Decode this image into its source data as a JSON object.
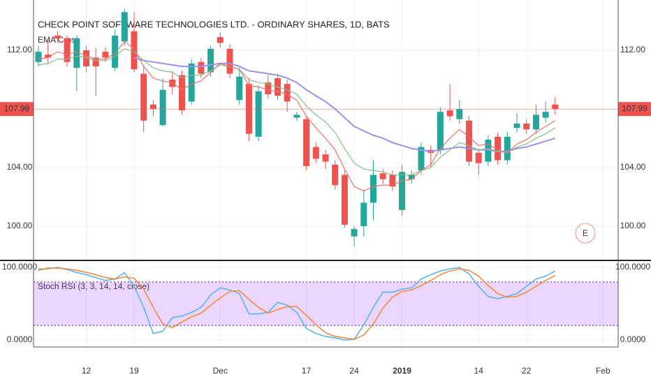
{
  "chart_data": [
    {
      "type": "candlestick",
      "title": "CHECK POINT SOFTWARE TECHNOLOGIES LTD. - ORDINARY SHARES, 1D, BATS",
      "subtitle": "EMA Cross",
      "categories": [
        null,
        null,
        null,
        null,
        null,
        "12",
        null,
        null,
        null,
        null,
        "19",
        null,
        null,
        null,
        null,
        null,
        null,
        null,
        null,
        "Dec",
        null,
        null,
        null,
        null,
        null,
        null,
        null,
        null,
        "17",
        null,
        null,
        null,
        null,
        "24",
        null,
        null,
        null,
        null,
        "2019",
        null,
        null,
        null,
        null,
        null,
        null,
        null,
        "14",
        null,
        null,
        null,
        null,
        "22",
        null,
        null,
        null,
        null,
        null,
        null,
        null,
        "Feb"
      ],
      "open": [
        111.2,
        111.7,
        113.0,
        112.8,
        110.8,
        112.0,
        111.5,
        111.9,
        110.8,
        112.6,
        113.3,
        110.4,
        108.3,
        106.9,
        110.0,
        110.3,
        108.5,
        111.2,
        110.5,
        112.9,
        112.1,
        108.6,
        109.7,
        106.1,
        109.8,
        110.1,
        109.7,
        107.4,
        107.3,
        105.4,
        104.9,
        104.2,
        103.5,
        99.3,
        100.0,
        101.6,
        103.6,
        103.5,
        101.1,
        103.2,
        103.8,
        105.2,
        105.2,
        107.9,
        107.3,
        107.2,
        105.0,
        104.4,
        106.1,
        104.5,
        106.7,
        107.0,
        106.6,
        107.4,
        108.3,
        null,
        null,
        null,
        null,
        null
      ],
      "high": [
        112.3,
        112.8,
        113.3,
        113.0,
        113.0,
        112.3,
        112.2,
        112.2,
        113.4,
        114.8,
        114.6,
        111.0,
        108.6,
        110.1,
        110.6,
        110.6,
        111.4,
        111.5,
        112.3,
        113.2,
        112.4,
        110.8,
        110.1,
        109.6,
        110.3,
        110.4,
        110.0,
        107.8,
        107.5,
        105.7,
        105.2,
        104.5,
        103.8,
        100.0,
        102.5,
        104.5,
        103.9,
        103.8,
        104.2,
        103.8,
        105.7,
        105.5,
        108.1,
        109.7,
        108.6,
        107.5,
        105.3,
        106.2,
        106.4,
        106.4,
        107.7,
        107.3,
        108.3,
        108.5,
        108.8,
        null,
        null,
        null,
        null,
        null
      ],
      "low": [
        110.9,
        111.0,
        112.5,
        110.9,
        109.2,
        110.5,
        108.9,
        111.2,
        110.6,
        112.3,
        110.5,
        106.4,
        107.5,
        106.8,
        109.0,
        107.6,
        108.3,
        110.1,
        110.2,
        112.2,
        110.1,
        108.3,
        105.8,
        105.8,
        108.7,
        108.6,
        107.8,
        107.2,
        103.8,
        104.3,
        103.9,
        102.5,
        99.9,
        98.6,
        99.3,
        100.4,
        102.9,
        102.4,
        100.7,
        102.9,
        103.5,
        104.0,
        104.9,
        107.2,
        107.0,
        104.1,
        103.5,
        104.1,
        104.2,
        104.2,
        106.4,
        106.3,
        106.3,
        107.1,
        107.6,
        null,
        null,
        null,
        null,
        null
      ],
      "close": [
        111.9,
        111.5,
        112.8,
        111.2,
        112.8,
        110.9,
        110.9,
        111.5,
        113.0,
        114.6,
        110.7,
        107.2,
        108.0,
        109.3,
        109.5,
        107.9,
        111.1,
        110.4,
        112.1,
        112.5,
        110.4,
        110.2,
        106.3,
        109.2,
        109.0,
        108.9,
        108.5,
        107.6,
        104.1,
        104.6,
        104.4,
        102.8,
        100.1,
        99.8,
        101.6,
        103.5,
        103.2,
        102.7,
        103.7,
        103.5,
        105.4,
        105.0,
        107.8,
        107.5,
        108.0,
        104.4,
        104.3,
        105.9,
        104.5,
        106.1,
        107.0,
        106.6,
        107.6,
        107.8,
        107.99,
        null,
        null,
        null,
        null,
        null
      ],
      "up_color": "#26a69a",
      "down_color": "#ef5350",
      "ema_lines": [
        {
          "color": "#9a93ee",
          "values": [
            null,
            null,
            null,
            null,
            null,
            null,
            null,
            null,
            null,
            null,
            111.5,
            111.3,
            111.2,
            111.1,
            111.0,
            110.9,
            110.9,
            110.9,
            111.0,
            111.1,
            111.1,
            110.9,
            110.6,
            110.5,
            110.4,
            110.3,
            110.1,
            109.8,
            109.3,
            108.9,
            108.5,
            108.0,
            107.4,
            106.8,
            106.5,
            106.2,
            106.0,
            105.7,
            105.5,
            105.3,
            105.2,
            105.1,
            105.2,
            105.3,
            105.4,
            105.3,
            105.2,
            105.2,
            105.1,
            105.1,
            105.3,
            105.4,
            105.6,
            105.8,
            106.0,
            null,
            null,
            null,
            null,
            null
          ]
        },
        {
          "color": "#86c08a",
          "values": [
            111.0,
            111.1,
            111.4,
            111.4,
            111.6,
            111.5,
            111.3,
            111.3,
            111.6,
            112.1,
            111.9,
            111.3,
            110.8,
            110.6,
            110.5,
            110.1,
            110.3,
            110.3,
            110.6,
            111.0,
            110.9,
            110.7,
            110.0,
            109.8,
            109.7,
            109.5,
            109.3,
            109.0,
            108.2,
            107.6,
            107.1,
            106.4,
            105.3,
            104.3,
            103.9,
            103.8,
            103.7,
            103.5,
            103.5,
            103.5,
            103.8,
            104.0,
            104.7,
            105.2,
            105.7,
            105.5,
            105.2,
            105.3,
            105.1,
            105.0,
            105.4,
            105.6,
            106.0,
            106.3,
            106.7,
            null,
            null,
            null,
            null,
            null
          ]
        },
        {
          "color": "#f0706a",
          "values": [
            111.4,
            111.5,
            111.9,
            111.7,
            111.9,
            111.6,
            111.4,
            111.4,
            111.8,
            112.6,
            112.1,
            110.9,
            110.1,
            109.9,
            109.8,
            109.3,
            109.7,
            109.9,
            110.5,
            111.1,
            110.9,
            110.7,
            109.6,
            109.5,
            109.3,
            109.2,
            109.0,
            108.6,
            107.5,
            106.7,
            106.0,
            105.2,
            103.9,
            102.7,
            102.4,
            102.7,
            102.8,
            102.8,
            103.1,
            103.2,
            103.8,
            104.2,
            105.3,
            106.0,
            106.6,
            106.1,
            105.5,
            105.6,
            105.2,
            105.0,
            105.6,
            105.9,
            106.4,
            106.8,
            107.2,
            null,
            null,
            null,
            null,
            null
          ]
        }
      ],
      "last_price": 107.99,
      "last_price_color": "#ef5350",
      "earnings_marker": "E",
      "ylim": [
        97.71,
        115.43
      ],
      "yticks": [
        {
          "value": 100,
          "label": "100.00"
        },
        {
          "value": 104,
          "label": "104.00"
        },
        {
          "value": 112,
          "label": "112.00"
        }
      ],
      "grid": true
    },
    {
      "type": "line",
      "title": "Stoch RSI (3, 3, 14, 14, close)",
      "series": [
        {
          "color": "#5ab4f0",
          "values": [
            98,
            98,
            100,
            97,
            93,
            90,
            86,
            82,
            84,
            93,
            74,
            45,
            9,
            12,
            31,
            33,
            38,
            45,
            62,
            72,
            69,
            64,
            36,
            36,
            38,
            52,
            48,
            38,
            16,
            9,
            5,
            3,
            0,
            1,
            21,
            45,
            66,
            66,
            70,
            72,
            84,
            90,
            95,
            98,
            100,
            91,
            74,
            60,
            57,
            60,
            64,
            74,
            84,
            88,
            95,
            null,
            null,
            null,
            null,
            null
          ]
        },
        {
          "color": "#f08c3c",
          "values": [
            96,
            99,
            99,
            98,
            96,
            93,
            90,
            86,
            84,
            87,
            85,
            70,
            45,
            22,
            17,
            25,
            32,
            37,
            48,
            58,
            67,
            68,
            56,
            45,
            37,
            42,
            46,
            46,
            34,
            21,
            10,
            5,
            3,
            1,
            7,
            22,
            44,
            59,
            67,
            69,
            75,
            82,
            90,
            95,
            98,
            96,
            88,
            75,
            64,
            59,
            60,
            66,
            74,
            82,
            89,
            null,
            null,
            null,
            null,
            null
          ]
        }
      ],
      "band": [
        20,
        80
      ],
      "band_color": "#9933ff",
      "ylim": [
        -9.6,
        108.7
      ],
      "yticks": [
        {
          "value": 0,
          "label": "0.0000"
        },
        {
          "value": 100,
          "label": "100.0000"
        }
      ],
      "grid": true
    }
  ]
}
